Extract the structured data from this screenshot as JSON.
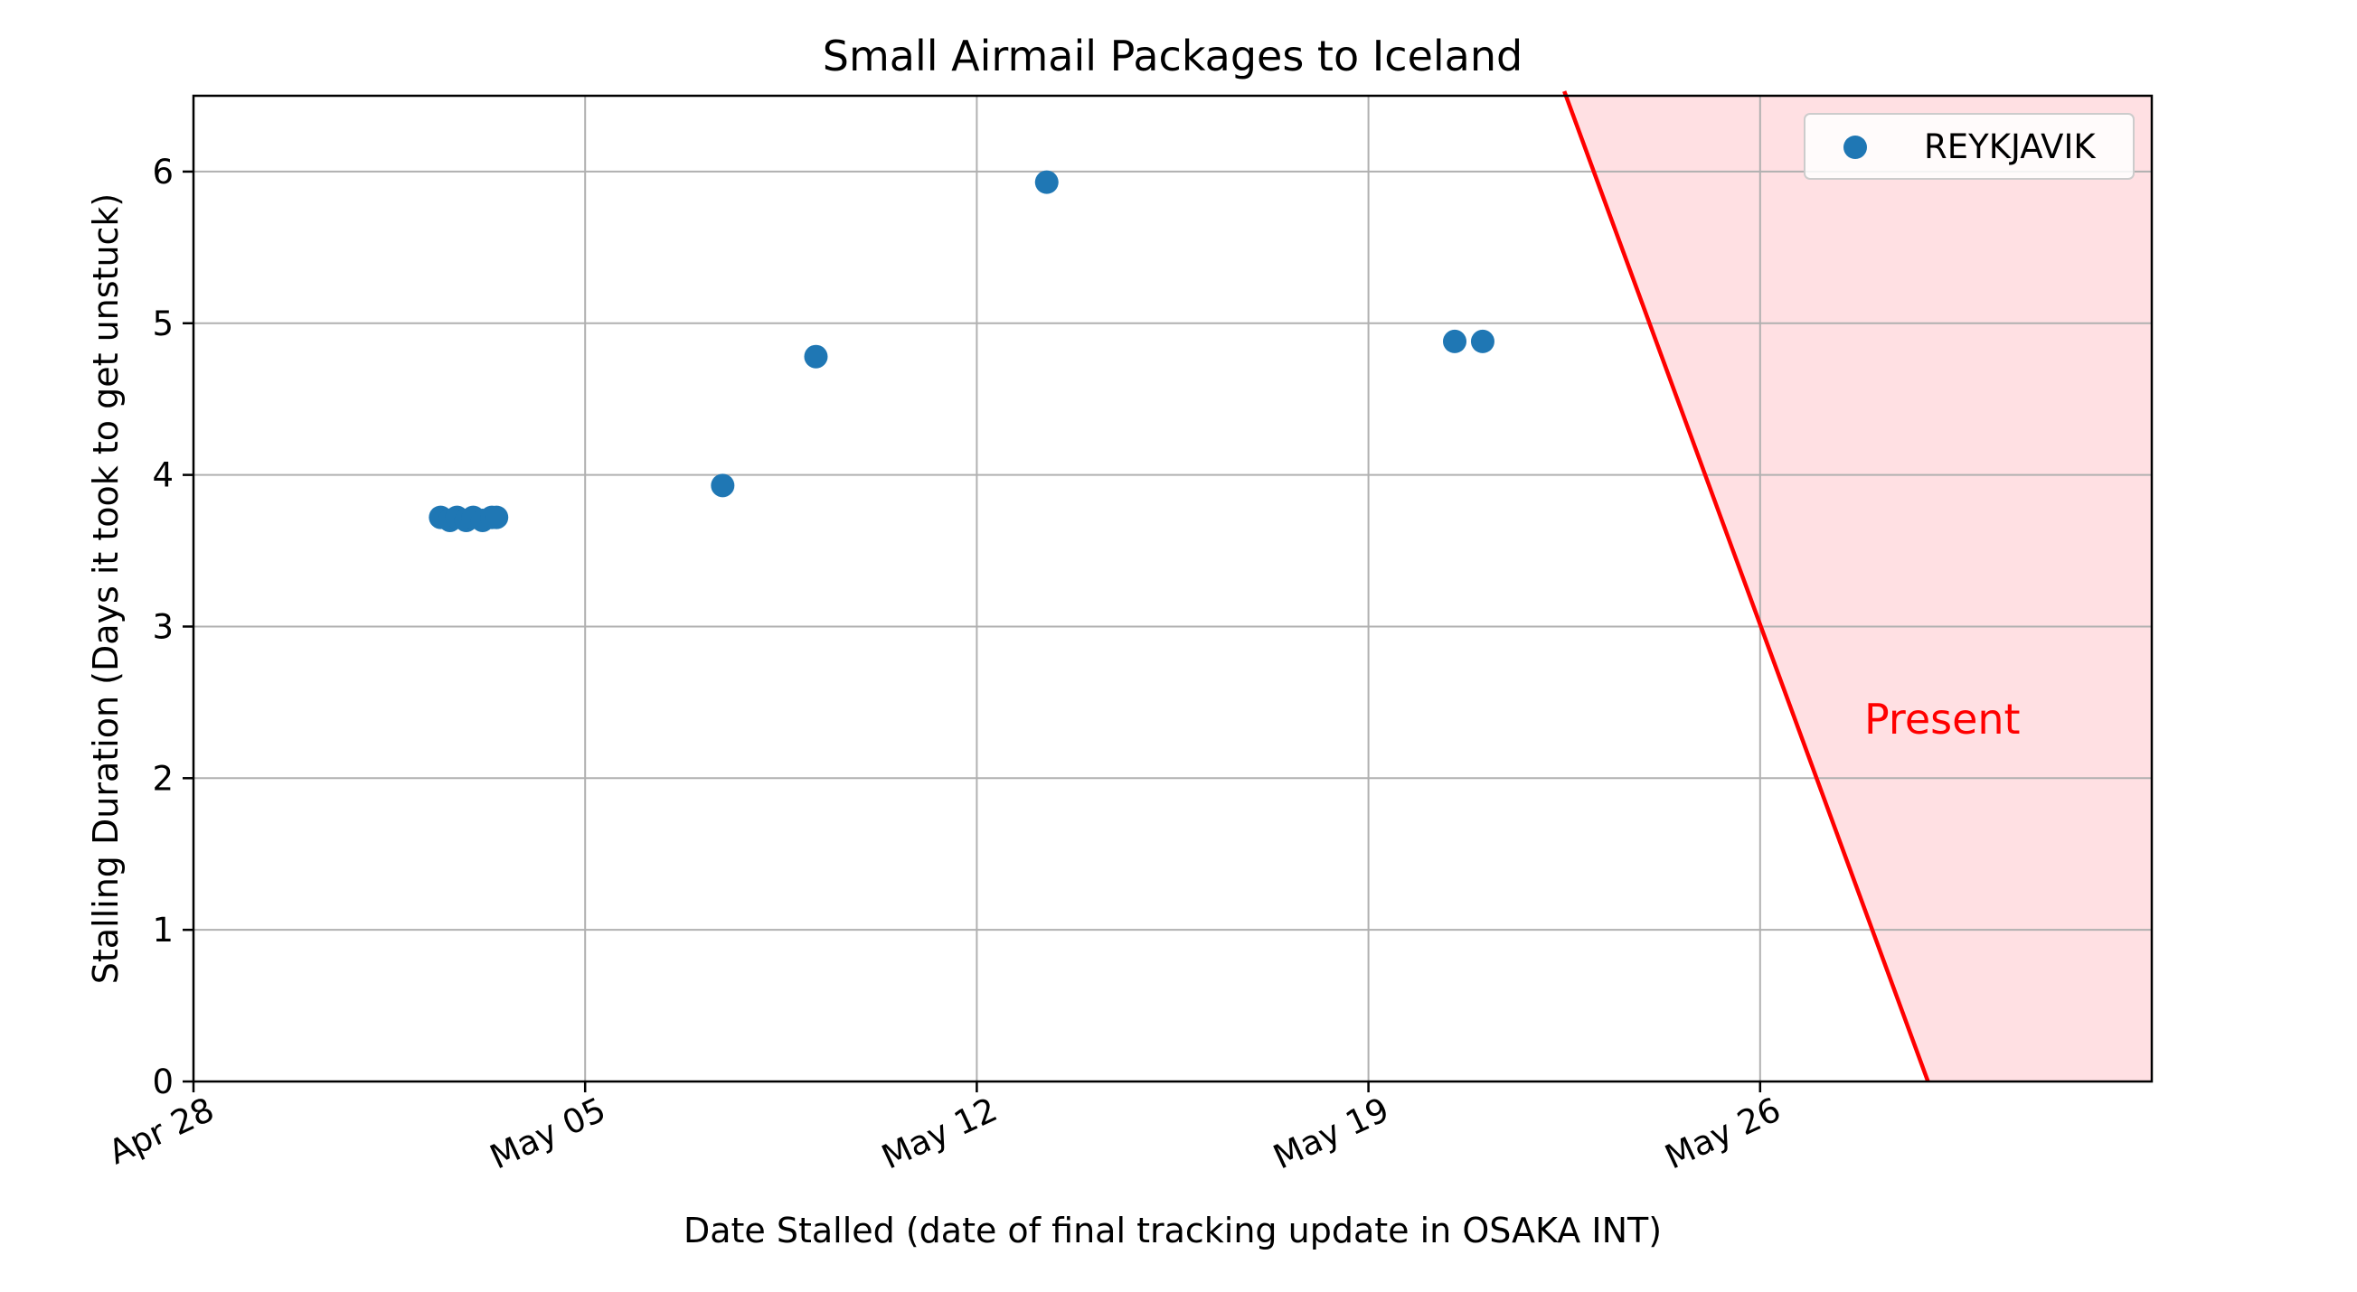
{
  "chart_data": {
    "type": "scatter",
    "title": "Small Airmail Packages to Iceland",
    "xlabel": "Date Stalled (date of final tracking update in OSAKA INT)",
    "ylabel": "Stalling Duration (Days it took to get unstuck)",
    "x_is_date": true,
    "xlim": [
      "2023-04-28",
      "2023-06-02"
    ],
    "ylim": [
      0,
      6.5
    ],
    "x_ticks": [
      {
        "value": "2023-04-28",
        "label": "Apr 28"
      },
      {
        "value": "2023-05-05",
        "label": "May 05"
      },
      {
        "value": "2023-05-12",
        "label": "May 12"
      },
      {
        "value": "2023-05-19",
        "label": "May 19"
      },
      {
        "value": "2023-05-26",
        "label": "May 26"
      }
    ],
    "y_ticks": [
      0,
      1,
      2,
      3,
      4,
      5,
      6
    ],
    "grid": true,
    "legend_position": "top-right",
    "series": [
      {
        "name": "REYKJAVIK",
        "color": "#1f77b4",
        "points": [
          {
            "x": "2023-05-02 10:00",
            "y": 3.72
          },
          {
            "x": "2023-05-02 14:00",
            "y": 3.7
          },
          {
            "x": "2023-05-02 17:00",
            "y": 3.72
          },
          {
            "x": "2023-05-02 21:00",
            "y": 3.7
          },
          {
            "x": "2023-05-03 00:00",
            "y": 3.72
          },
          {
            "x": "2023-05-03 04:00",
            "y": 3.7
          },
          {
            "x": "2023-05-03 08:00",
            "y": 3.72
          },
          {
            "x": "2023-05-03 10:00",
            "y": 3.72
          },
          {
            "x": "2023-05-07 11:00",
            "y": 3.93
          },
          {
            "x": "2023-05-09 03:00",
            "y": 4.78
          },
          {
            "x": "2023-05-13 06:00",
            "y": 5.93
          },
          {
            "x": "2023-05-20 13:00",
            "y": 4.88
          },
          {
            "x": "2023-05-21 01:00",
            "y": 4.88
          }
        ]
      }
    ],
    "present_region": {
      "label": "Present",
      "color": "#ff0000",
      "fill": "#ffe0e3",
      "line": [
        {
          "x": "2023-05-22 12:00",
          "y": 6.53
        },
        {
          "x": "2023-05-29 00:00",
          "y": 0
        }
      ]
    }
  }
}
